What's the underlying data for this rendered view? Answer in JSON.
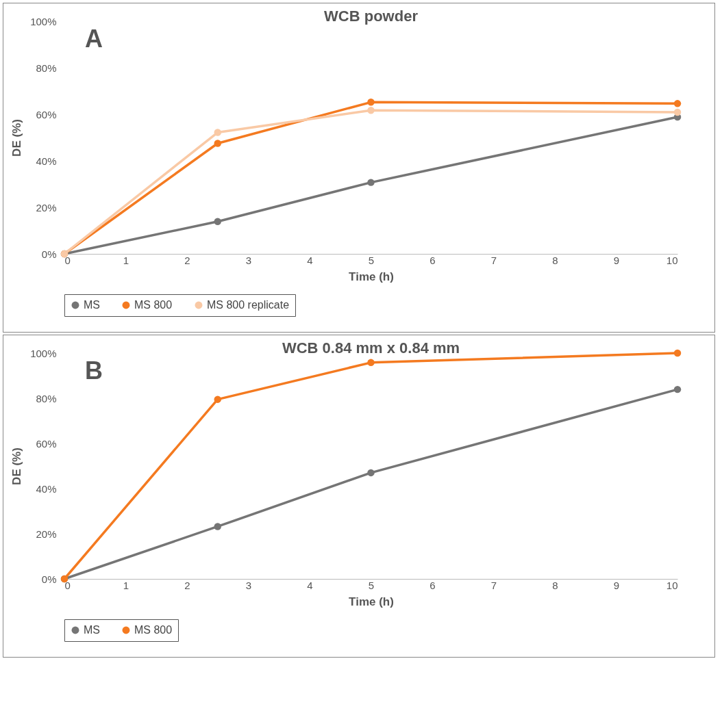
{
  "chart_data": [
    {
      "type": "line",
      "title": "WCB powder",
      "xlabel": "Time (h)",
      "ylabel": "DE (%)",
      "annotations": [
        "A"
      ],
      "x": [
        0,
        2.5,
        5,
        10
      ],
      "xlim": [
        0,
        10
      ],
      "xticks": [
        0,
        1,
        2,
        3,
        4,
        5,
        6,
        7,
        8,
        9,
        10
      ],
      "ylim": [
        0,
        100
      ],
      "yticks": [
        {
          "value": 0,
          "label": "0%"
        },
        {
          "value": 20,
          "label": "20%"
        },
        {
          "value": 40,
          "label": "40%"
        },
        {
          "value": 60,
          "label": "60%"
        },
        {
          "value": 80,
          "label": "80%"
        },
        {
          "value": 100,
          "label": "100%"
        }
      ],
      "legend": "bottom",
      "marker": "circle",
      "series": [
        {
          "name": "MS",
          "color": "#757575",
          "values": [
            0,
            13.9,
            30.7,
            58.8
          ]
        },
        {
          "name": "MS 800",
          "color": "#f47a20",
          "values": [
            0,
            47.5,
            65.2,
            64.6
          ]
        },
        {
          "name": "MS 800 replicate",
          "color": "#f9c9a5",
          "values": [
            0,
            52.2,
            61.7,
            60.9
          ]
        }
      ]
    },
    {
      "type": "line",
      "title": "WCB 0.84 mm  x 0.84 mm",
      "xlabel": "Time (h)",
      "ylabel": "DE (%)",
      "annotations": [
        "B"
      ],
      "x": [
        0,
        2.5,
        5,
        10
      ],
      "xlim": [
        0,
        10
      ],
      "xticks": [
        0,
        1,
        2,
        3,
        4,
        5,
        6,
        7,
        8,
        9,
        10
      ],
      "ylim": [
        0,
        100
      ],
      "yticks": [
        {
          "value": 0,
          "label": "0%"
        },
        {
          "value": 20,
          "label": "20%"
        },
        {
          "value": 40,
          "label": "40%"
        },
        {
          "value": 60,
          "label": "60%"
        },
        {
          "value": 80,
          "label": "80%"
        },
        {
          "value": 100,
          "label": "100%"
        }
      ],
      "legend": "bottom",
      "marker": "circle",
      "series": [
        {
          "name": "MS",
          "color": "#757575",
          "values": [
            0,
            23.2,
            47,
            83.9
          ]
        },
        {
          "name": "MS 800",
          "color": "#f47a20",
          "values": [
            0,
            79.5,
            95.8,
            100
          ]
        }
      ]
    }
  ]
}
